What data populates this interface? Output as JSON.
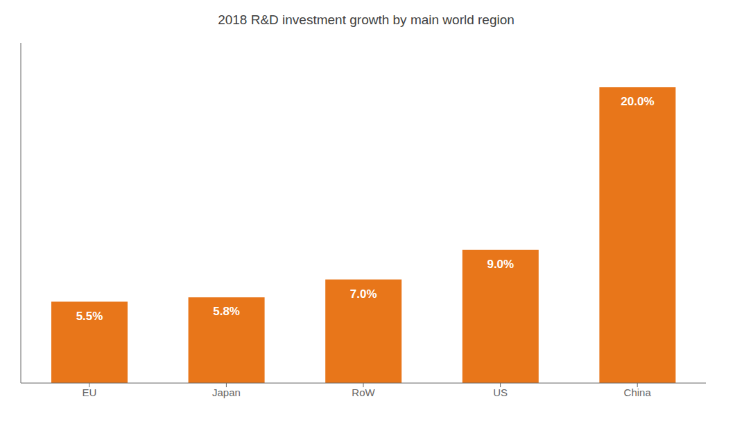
{
  "chart_data": {
    "type": "bar",
    "title": "2018 R&D investment growth by main world region",
    "categories": [
      "EU",
      "Japan",
      "RoW",
      "US",
      "China"
    ],
    "values": [
      5.5,
      5.8,
      7.0,
      9.0,
      20.0
    ],
    "value_labels": [
      "5.5%",
      "5.8%",
      "7.0%",
      "9.0%",
      "20.0%"
    ],
    "color": "#E8761A",
    "ylim": [
      0,
      23
    ],
    "grid": false,
    "data_labels": true,
    "tick_labels": "x"
  }
}
